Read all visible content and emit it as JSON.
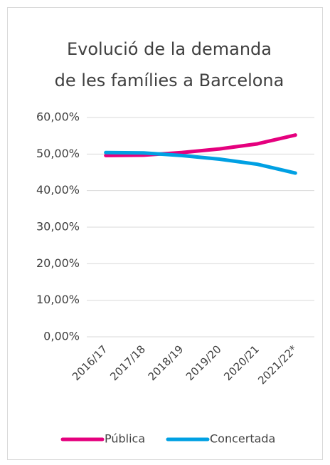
{
  "chart_data": {
    "type": "line",
    "title": [
      "Evolució de la demanda",
      "de les famílies a Barcelona"
    ],
    "categories": [
      "2016/17",
      "2017/18",
      "2018/19",
      "2019/20",
      "2020/21",
      "2021/22*"
    ],
    "series": [
      {
        "name": "Pública",
        "color": "#e5007e",
        "values": [
          49.6,
          49.7,
          50.4,
          51.4,
          52.8,
          55.2
        ]
      },
      {
        "name": "Concertada",
        "color": "#00a0e3",
        "values": [
          50.4,
          50.3,
          49.6,
          48.6,
          47.2,
          44.8
        ]
      }
    ],
    "ylim": [
      0,
      60
    ],
    "yticks": [
      {
        "value": 0,
        "label": "0,00%"
      },
      {
        "value": 10,
        "label": "10,00%"
      },
      {
        "value": 20,
        "label": "20,00%"
      },
      {
        "value": 30,
        "label": "30,00%"
      },
      {
        "value": 40,
        "label": "40,00%"
      },
      {
        "value": 50,
        "label": "50,00%"
      },
      {
        "value": 60,
        "label": "60,00%"
      }
    ],
    "grid": true,
    "legend": "bottom"
  }
}
